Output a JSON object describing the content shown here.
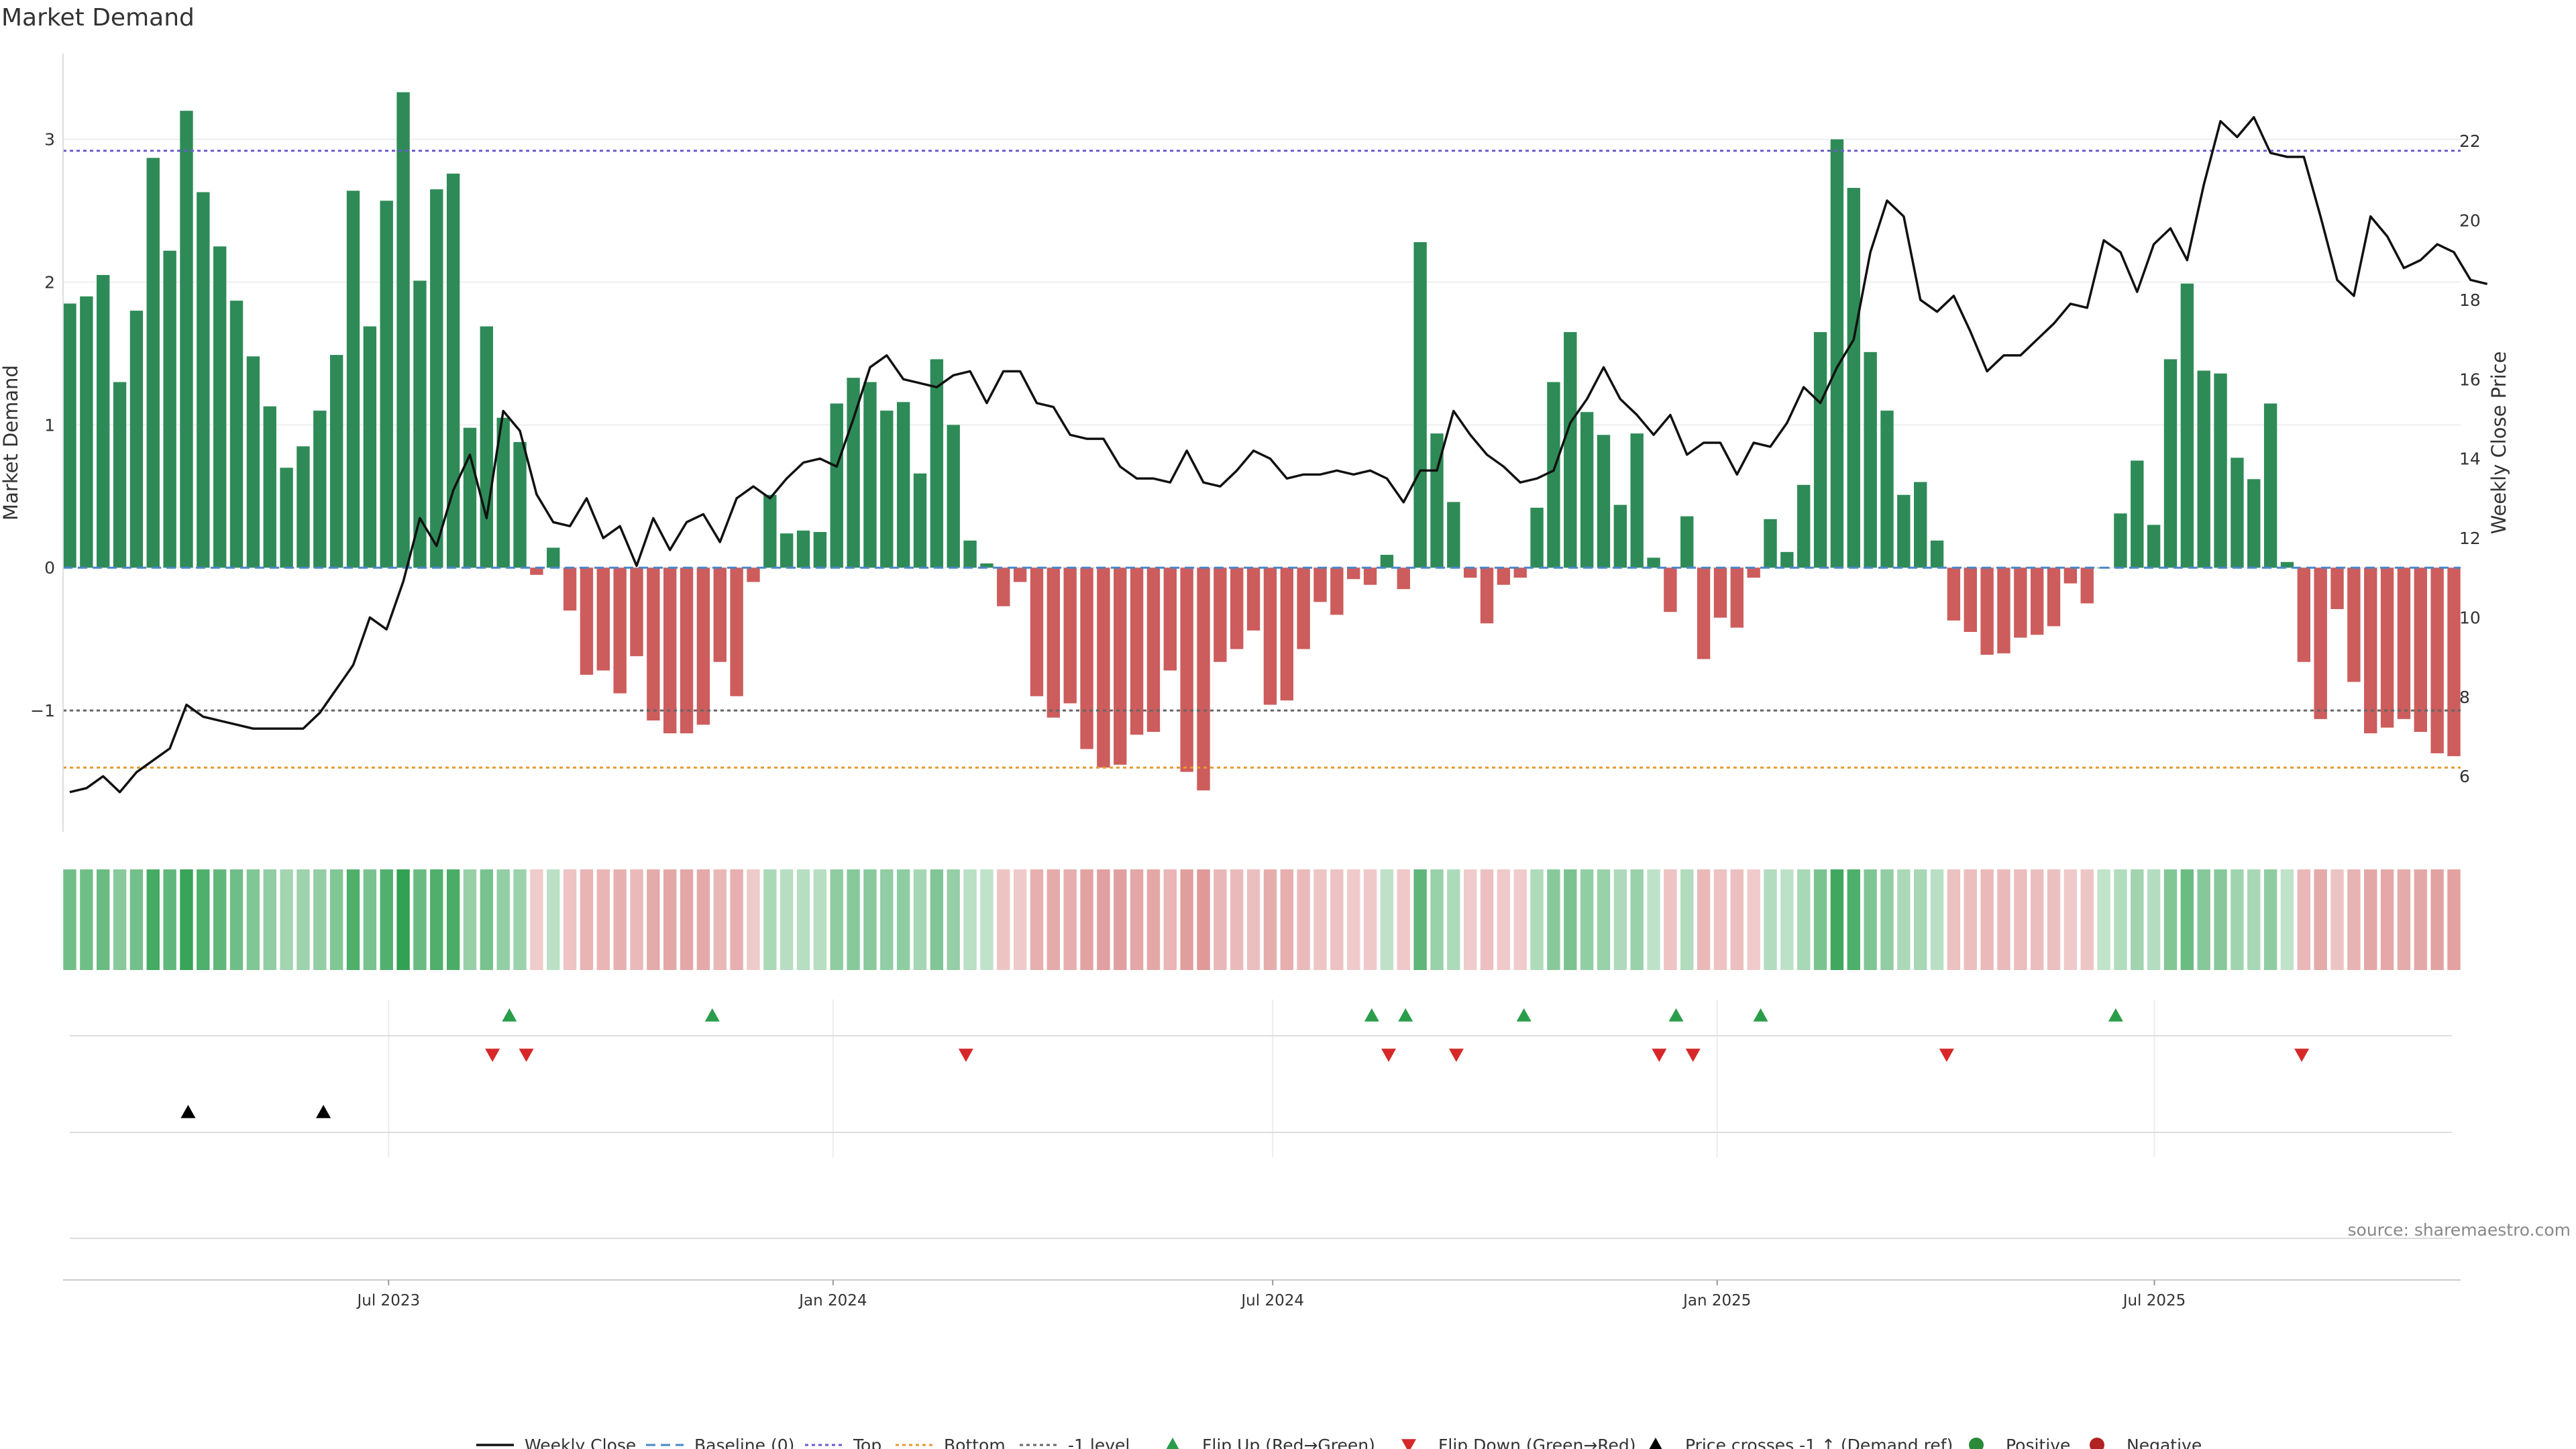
{
  "chart_data": {
    "type": "bar",
    "title": "Market Demand",
    "ylabel_left": "Market Demand",
    "ylabel_right": "Weekly Close Price",
    "source": "source: sharemaestro.com",
    "ylim_left": [
      -1.85,
      3.6
    ],
    "ylim_right": [
      4.6,
      24.2
    ],
    "yticks_left": [
      {
        "v": 3,
        "label": "3"
      },
      {
        "v": 2,
        "label": "2"
      },
      {
        "v": 1,
        "label": "1"
      },
      {
        "v": 0,
        "label": "0"
      },
      {
        "v": -1,
        "label": "−1"
      }
    ],
    "yticks_right": [
      {
        "v": 22,
        "label": "22"
      },
      {
        "v": 20,
        "label": "20"
      },
      {
        "v": 18,
        "label": "18"
      },
      {
        "v": 16,
        "label": "16"
      },
      {
        "v": 14,
        "label": "14"
      },
      {
        "v": 12,
        "label": "12"
      },
      {
        "v": 10,
        "label": "10"
      },
      {
        "v": 8,
        "label": "8"
      },
      {
        "v": 6,
        "label": "6"
      }
    ],
    "x_dates": [
      "2023-02-19",
      "2025-11-02"
    ],
    "xticks": [
      {
        "date": "2023-07-01",
        "label": "Jul 2023"
      },
      {
        "date": "2024-01-01",
        "label": "Jan 2024"
      },
      {
        "date": "2024-07-01",
        "label": "Jul 2024"
      },
      {
        "date": "2025-01-01",
        "label": "Jan 2025"
      },
      {
        "date": "2025-07-01",
        "label": "Jul 2025"
      }
    ],
    "reference_lines": [
      {
        "name": "Top",
        "value": 2.92,
        "color": "#6a5acd"
      },
      {
        "name": "-1 level",
        "value": -1.0,
        "color": "#666666"
      },
      {
        "name": "Bottom",
        "value": -1.4,
        "color": "#e69a2e"
      }
    ],
    "demand": [
      1.85,
      1.9,
      2.05,
      1.3,
      1.8,
      2.87,
      2.22,
      3.2,
      2.63,
      2.25,
      1.87,
      1.48,
      1.13,
      0.7,
      0.85,
      1.1,
      1.49,
      2.64,
      1.69,
      2.57,
      3.33,
      2.01,
      2.65,
      2.76,
      0.98,
      1.69,
      1.05,
      0.88,
      -0.05,
      0.14,
      -0.3,
      -0.75,
      -0.72,
      -0.88,
      -0.62,
      -1.07,
      -1.16,
      -1.16,
      -1.1,
      -0.66,
      -0.9,
      -0.1,
      0.51,
      0.24,
      0.26,
      0.25,
      1.15,
      1.33,
      1.3,
      1.1,
      1.16,
      0.66,
      1.46,
      1.0,
      0.19,
      0.03,
      -0.27,
      -0.1,
      -0.9,
      -1.05,
      -0.95,
      -1.27,
      -1.4,
      -1.38,
      -1.17,
      -1.15,
      -0.72,
      -1.43,
      -1.56,
      -0.66,
      -0.57,
      -0.44,
      -0.96,
      -0.93,
      -0.57,
      -0.24,
      -0.33,
      -0.08,
      -0.12,
      0.09,
      -0.15,
      2.28,
      0.94,
      0.46,
      -0.07,
      -0.39,
      -0.12,
      -0.07,
      0.42,
      1.3,
      1.65,
      1.09,
      0.93,
      0.44,
      0.94,
      0.07,
      -0.31,
      0.36,
      -0.64,
      -0.35,
      -0.42,
      -0.07,
      0.34,
      0.11,
      0.58,
      1.65,
      3.0,
      2.66,
      1.51,
      1.1,
      0.51,
      0.6,
      0.19,
      -0.37,
      -0.45,
      -0.61,
      -0.6,
      -0.49,
      -0.47,
      -0.41,
      -0.11,
      -0.25,
      0.0,
      0.38,
      0.75,
      0.3,
      1.46,
      1.99,
      1.38,
      1.36,
      0.77,
      0.62,
      1.15,
      0.04,
      -0.66,
      -1.06,
      -0.29,
      -0.8,
      -1.16,
      -1.12,
      -1.06,
      -1.15,
      -1.3,
      -1.32
    ],
    "weekly_close": [
      5.6,
      5.7,
      6.0,
      5.6,
      6.1,
      6.4,
      6.7,
      7.8,
      7.5,
      7.4,
      7.3,
      7.2,
      7.2,
      7.2,
      7.2,
      7.6,
      8.2,
      8.8,
      10.0,
      9.7,
      10.9,
      12.5,
      11.8,
      13.2,
      14.1,
      12.5,
      15.2,
      14.7,
      13.1,
      12.4,
      12.3,
      13.0,
      12.0,
      12.3,
      11.3,
      12.5,
      11.7,
      12.4,
      12.6,
      11.9,
      13.0,
      13.3,
      13.0,
      13.5,
      13.9,
      14.0,
      13.8,
      15.0,
      16.3,
      16.6,
      16.0,
      15.9,
      15.8,
      16.1,
      16.2,
      15.4,
      16.2,
      16.2,
      15.4,
      15.3,
      14.6,
      14.5,
      14.5,
      13.8,
      13.5,
      13.5,
      13.4,
      14.2,
      13.4,
      13.3,
      13.7,
      14.2,
      14.0,
      13.5,
      13.6,
      13.6,
      13.7,
      13.6,
      13.7,
      13.5,
      12.9,
      13.7,
      13.7,
      15.2,
      14.6,
      14.1,
      13.8,
      13.4,
      13.5,
      13.7,
      14.9,
      15.5,
      16.3,
      15.5,
      15.1,
      14.6,
      15.1,
      14.1,
      14.4,
      14.4,
      13.6,
      14.4,
      14.3,
      14.9,
      15.8,
      15.4,
      16.3,
      17.0,
      19.2,
      20.5,
      20.1,
      18.0,
      17.7,
      18.1,
      17.2,
      16.2,
      16.6,
      16.6,
      17.0,
      17.4,
      17.9,
      17.8,
      19.5,
      19.2,
      18.2,
      19.4,
      19.8,
      19.0,
      20.9,
      22.5,
      22.1,
      22.6,
      21.7,
      21.6,
      21.6,
      20.1,
      18.5,
      18.1,
      20.1,
      19.6,
      18.8,
      19.0,
      19.4,
      19.2,
      18.5,
      18.4
    ],
    "flip_up_dates": [
      "2023-08-20",
      "2023-11-12",
      "2024-08-11",
      "2024-08-25",
      "2024-10-13",
      "2024-12-15",
      "2025-01-19",
      "2025-06-15"
    ],
    "flip_down_dates": [
      "2023-08-13",
      "2023-08-27",
      "2024-02-25",
      "2024-08-18",
      "2024-09-15",
      "2024-12-08",
      "2024-12-22",
      "2025-04-06",
      "2025-08-31"
    ],
    "price_cross_dates": [
      "2023-04-09",
      "2023-06-04"
    ],
    "legend": [
      {
        "label": "Weekly Close",
        "icon": "solid-line",
        "color": "#111111"
      },
      {
        "label": "Baseline (0)",
        "icon": "dashed-line",
        "color": "#4a86c8"
      },
      {
        "label": "Top",
        "icon": "dotted-line",
        "color": "#6a5acd"
      },
      {
        "label": "Bottom",
        "icon": "dotted-line",
        "color": "#e69a2e"
      },
      {
        "label": "-1 level",
        "icon": "dotted-line",
        "color": "#666666"
      },
      {
        "label": "Flip Up (Red→Green)",
        "icon": "triangle-up",
        "color": "#2a9d4a"
      },
      {
        "label": "Flip Down (Green→Red)",
        "icon": "triangle-down",
        "color": "#d62828"
      },
      {
        "label": "Price crosses -1 ↑ (Demand ref)",
        "icon": "triangle-up",
        "color": "#000000"
      },
      {
        "label": "Positive",
        "icon": "circle",
        "color": "#2a8a3a"
      },
      {
        "label": "Negative",
        "icon": "circle",
        "color": "#b22222"
      }
    ],
    "colors": {
      "positive_bar": "#2e8b57",
      "negative_bar": "#cd5c5c",
      "price_line": "#111111",
      "baseline": "#4a86c8",
      "flip_up": "#2a9d4a",
      "flip_down": "#d62828",
      "price_cross": "#000000"
    }
  }
}
